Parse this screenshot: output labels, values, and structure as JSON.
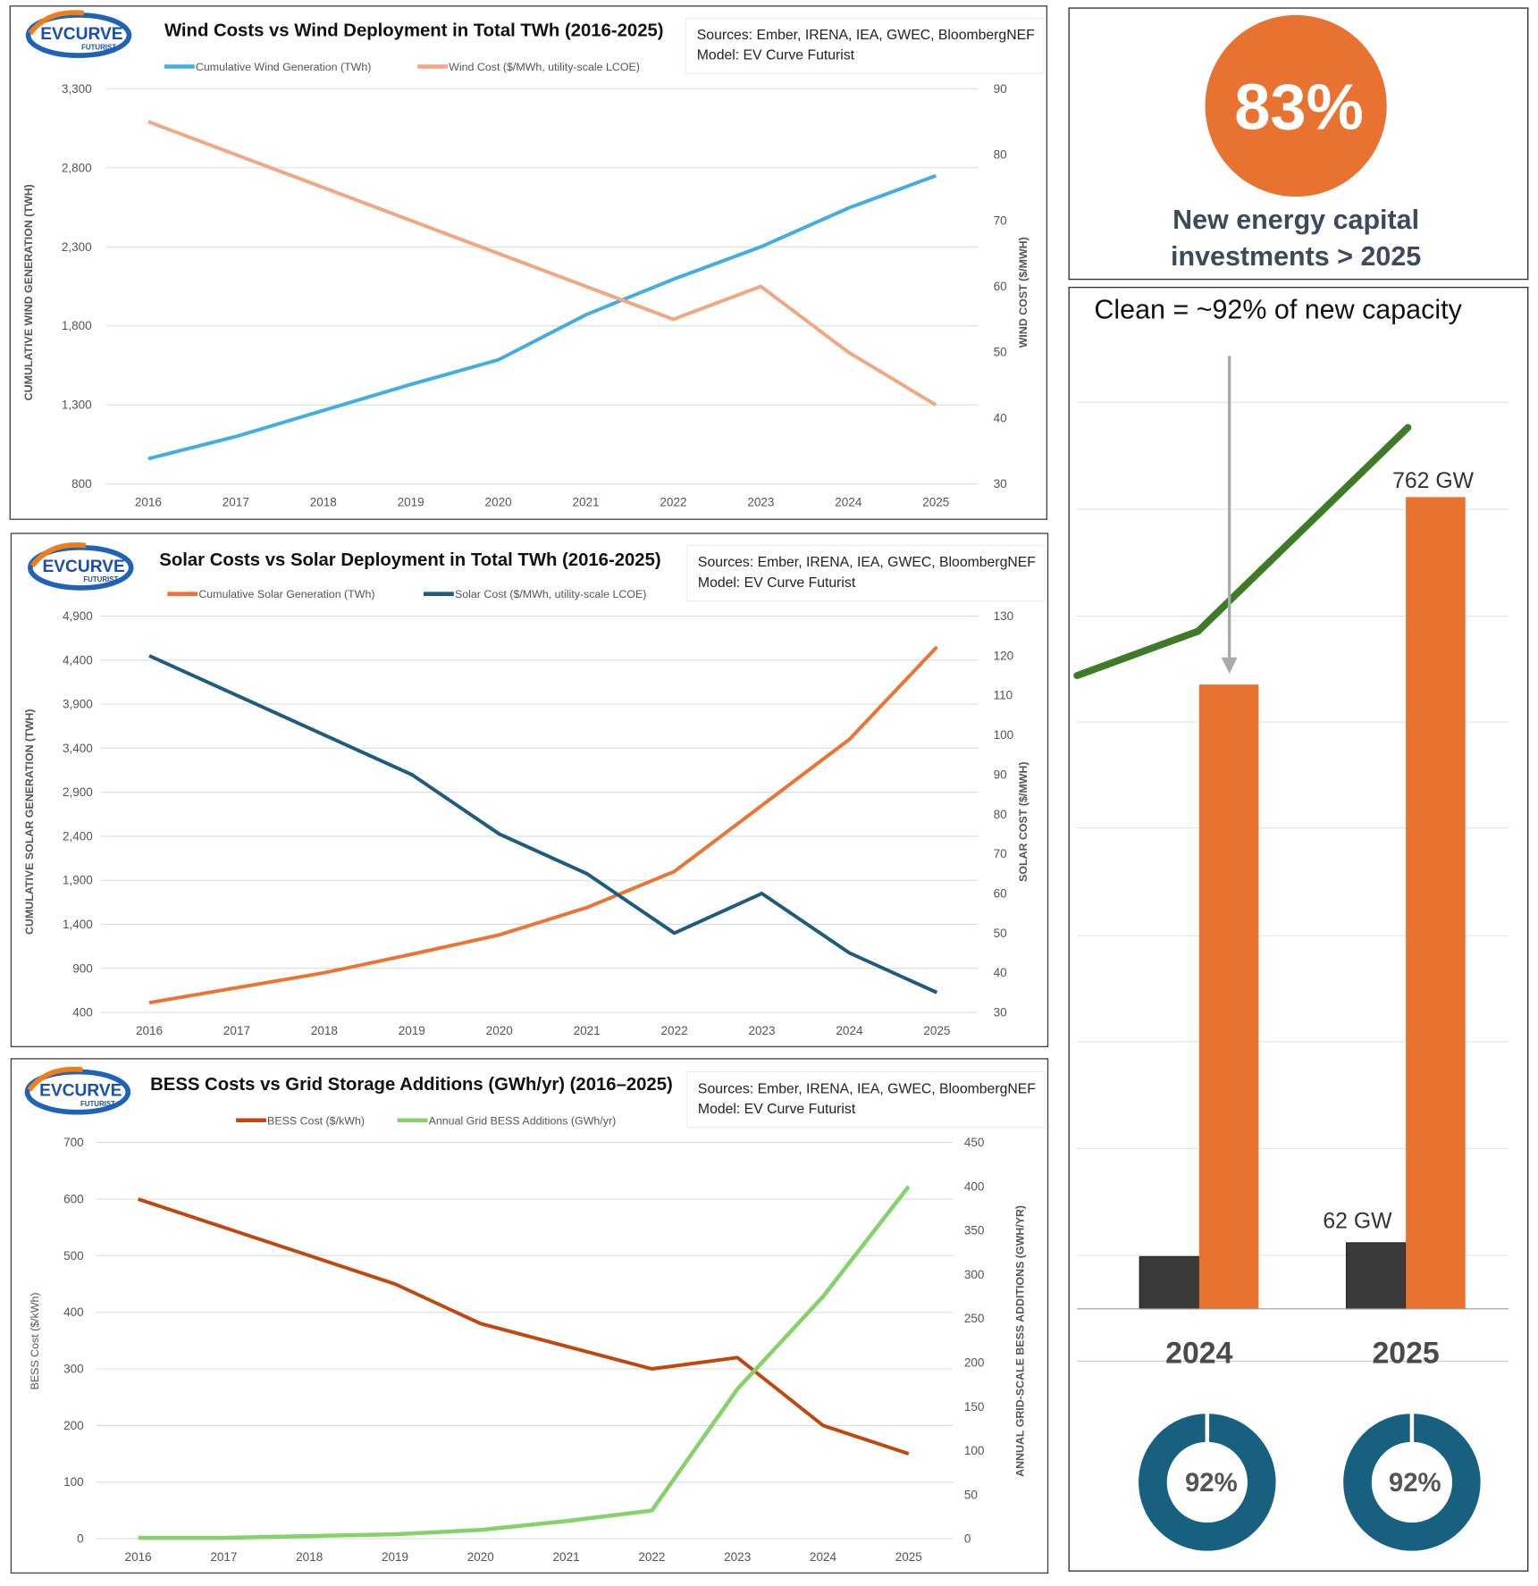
{
  "logo_text": "EVCURVE FUTURIST",
  "chart_data": [
    {
      "type": "line",
      "title": "Wind Costs  vs Wind Deployment in Total TWh (2016-2025)",
      "sources": "Sources: Ember, IRENA, IEA, GWEC, BloombergNEF",
      "model": "Model: EV Curve Futurist",
      "x": [
        "2016",
        "2017",
        "2018",
        "2019",
        "2020",
        "2021",
        "2022",
        "2023",
        "2024",
        "2025"
      ],
      "ylabel": "CUMULATIVE WIND GENERATION (TWH)",
      "y2label": "WIND COST ($/MWH)",
      "ylim": [
        800,
        3300
      ],
      "yticks": [
        "800",
        "1,300",
        "1,800",
        "2,300",
        "2,800",
        "3,300"
      ],
      "y2lim": [
        30,
        90
      ],
      "y2ticks": [
        "30",
        "40",
        "50",
        "60",
        "70",
        "80",
        "90"
      ],
      "grid": true,
      "legend": "top",
      "series": [
        {
          "name": "Cumulative Wind Generation (TWh)",
          "axis": "left",
          "color": "#41AEE2",
          "values": [
            960,
            1100,
            1265,
            1430,
            1585,
            1870,
            2095,
            2300,
            2545,
            2750
          ]
        },
        {
          "name": "Wind Cost ($/MWh, utility-scale LCOE)",
          "axis": "right",
          "color": "#F2A783",
          "values": [
            85,
            80,
            75,
            70,
            65,
            60,
            55,
            60,
            50,
            42
          ]
        }
      ]
    },
    {
      "type": "line",
      "title": "Solar Costs  vs Solar Deployment in Total TWh (2016-2025)",
      "sources": "Sources: Ember, IRENA, IEA, GWEC, BloombergNEF",
      "model": "Model: EV Curve Futurist",
      "x": [
        "2016",
        "2017",
        "2018",
        "2019",
        "2020",
        "2021",
        "2022",
        "2023",
        "2024",
        "2025"
      ],
      "ylabel": "CUMULATIVE SOLAR GENERATION (TWH)",
      "y2label": "SOLAR COST ($/MWH)",
      "ylim": [
        400,
        4900
      ],
      "yticks": [
        "400",
        "900",
        "1,400",
        "1,900",
        "2,400",
        "2,900",
        "3,400",
        "3,900",
        "4,400",
        "4,900"
      ],
      "y2lim": [
        30,
        130
      ],
      "y2ticks": [
        "30",
        "40",
        "50",
        "60",
        "70",
        "80",
        "90",
        "100",
        "110",
        "120",
        "130"
      ],
      "grid": true,
      "legend": "top",
      "series": [
        {
          "name": "Cumulative Solar Generation (TWh)",
          "axis": "left",
          "color": "#EC7430",
          "values": [
            510,
            680,
            850,
            1060,
            1280,
            1590,
            2000,
            2750,
            3500,
            4550
          ]
        },
        {
          "name": "Solar Cost ($/MWh, utility-scale LCOE)",
          "axis": "right",
          "color": "#1D5C7E",
          "values": [
            120,
            110,
            100,
            90,
            75,
            65,
            50,
            60,
            45,
            35
          ]
        }
      ]
    },
    {
      "type": "line",
      "title": "BESS Costs vs Grid Storage Additions (GWh/yr) (2016–2025)",
      "sources": "Sources: Ember, IRENA, IEA, GWEC, BloombergNEF",
      "model": "Model: EV Curve Futurist",
      "x": [
        "2016",
        "2017",
        "2018",
        "2019",
        "2020",
        "2021",
        "2022",
        "2023",
        "2024",
        "2025"
      ],
      "ylabel": "BESS Cost ($/kWh)",
      "y2label": "ANNUAL GRID-SCALE BESS ADDITIONS (GWH/YR)",
      "ylim": [
        0,
        700
      ],
      "yticks": [
        "0",
        "100",
        "200",
        "300",
        "400",
        "500",
        "600",
        "700"
      ],
      "y2lim": [
        0,
        450
      ],
      "y2ticks": [
        "0",
        "50",
        "100",
        "150",
        "200",
        "250",
        "300",
        "350",
        "400",
        "450"
      ],
      "grid": true,
      "legend": "top",
      "series": [
        {
          "name": "BESS Cost ($/kWh)",
          "axis": "left",
          "color": "#C2470F",
          "values": [
            600,
            550,
            500,
            450,
            380,
            340,
            300,
            320,
            200,
            150
          ]
        },
        {
          "name": "Annual Grid BESS Additions (GWh/yr)",
          "axis": "right",
          "color": "#86D26A",
          "values": [
            1,
            1,
            3,
            5,
            10,
            20,
            32,
            170,
            275,
            400
          ]
        }
      ]
    },
    {
      "type": "bar",
      "title": "Clean = ~92% of new capacity",
      "categories": [
        "2024",
        "2025"
      ],
      "series": [
        {
          "color": "#3A3A3A",
          "values": [
            49,
            62
          ],
          "labels": [
            "",
            "62 GW"
          ]
        },
        {
          "color": "#E8722F",
          "values": [
            586,
            762
          ],
          "labels": [
            "",
            "762 GW"
          ]
        }
      ],
      "trend_color": "#3E7B27",
      "arrow_color": "#AAAAAA",
      "donuts": [
        {
          "category": "2024",
          "percent": 92,
          "label": "92%"
        },
        {
          "category": "2025",
          "percent": 92,
          "label": "92%"
        }
      ],
      "donut_color": "#17607F",
      "grid": true
    }
  ],
  "stat_card": {
    "value": "83%",
    "line1": "New energy capital",
    "line2": "investments > 2025",
    "circle_color": "#E8722F",
    "text_color": "#3D4A5C"
  }
}
